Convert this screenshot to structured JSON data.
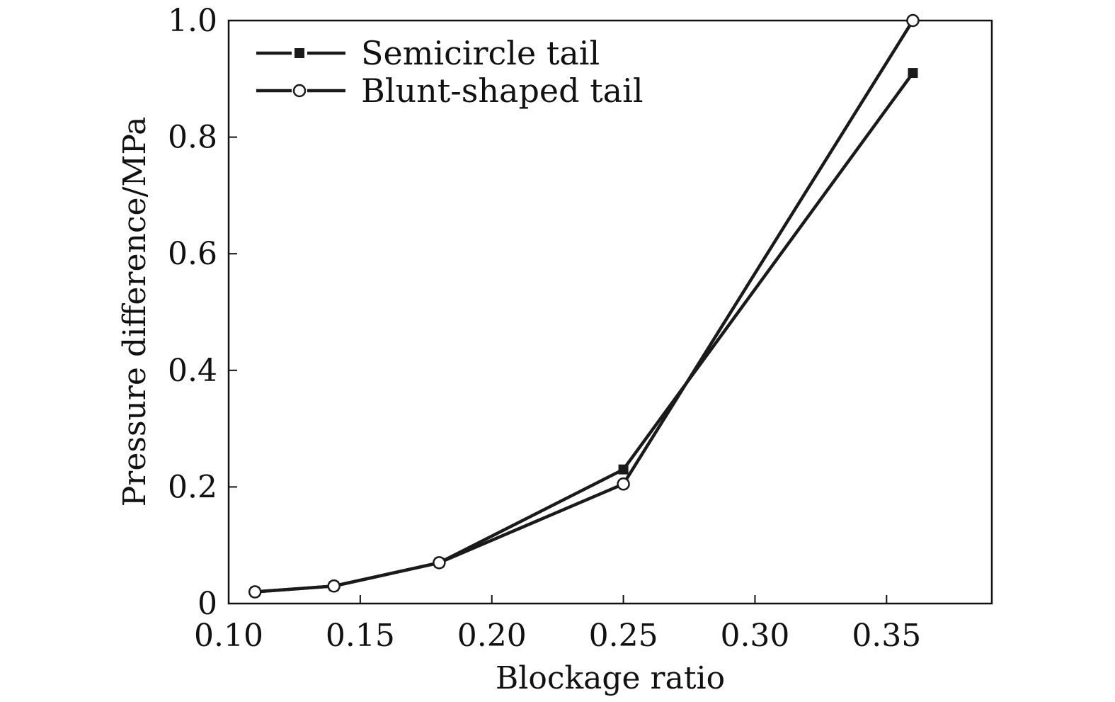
{
  "chart_data": {
    "type": "line",
    "xlabel": "Blockage ratio",
    "ylabel": "Pressure difference/MPa",
    "xlim": [
      0.1,
      0.39
    ],
    "ylim": [
      0,
      1.0
    ],
    "x_ticks": [
      {
        "value": 0.1,
        "label": "0.10"
      },
      {
        "value": 0.15,
        "label": "0.15"
      },
      {
        "value": 0.2,
        "label": "0.20"
      },
      {
        "value": 0.25,
        "label": "0.25"
      },
      {
        "value": 0.3,
        "label": "0.30"
      },
      {
        "value": 0.35,
        "label": "0.35"
      }
    ],
    "y_ticks": [
      {
        "value": 0.0,
        "label": "0"
      },
      {
        "value": 0.2,
        "label": "0.2"
      },
      {
        "value": 0.4,
        "label": "0.4"
      },
      {
        "value": 0.6,
        "label": "0.6"
      },
      {
        "value": 0.8,
        "label": "0.8"
      },
      {
        "value": 1.0,
        "label": "1.0"
      }
    ],
    "legend_position": "top-left",
    "grid": false,
    "series": [
      {
        "name": "Semicircle tail",
        "marker": "filled-square",
        "color": "#1a1a1a",
        "x": [
          0.11,
          0.14,
          0.18,
          0.25,
          0.36
        ],
        "y": [
          0.02,
          0.03,
          0.07,
          0.23,
          0.91
        ]
      },
      {
        "name": "Blunt-shaped tail",
        "marker": "open-circle",
        "color": "#1a1a1a",
        "x": [
          0.11,
          0.14,
          0.18,
          0.25,
          0.36
        ],
        "y": [
          0.02,
          0.03,
          0.07,
          0.205,
          1.0
        ]
      }
    ]
  }
}
